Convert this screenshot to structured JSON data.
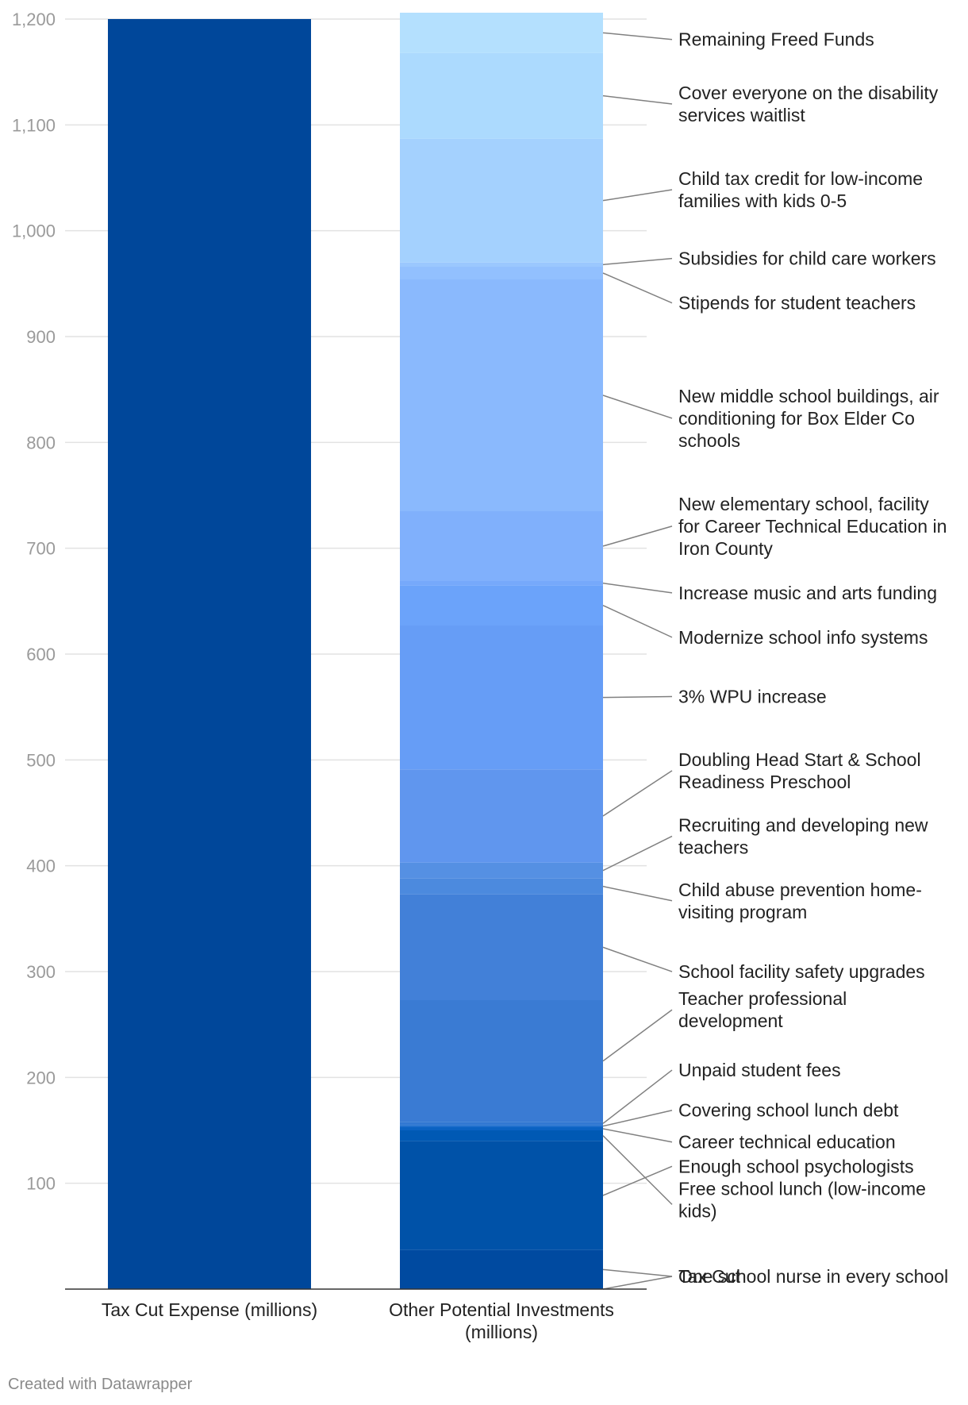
{
  "chart_data": {
    "type": "bar",
    "stacked": true,
    "yticks": [
      100,
      200,
      300,
      400,
      500,
      600,
      700,
      800,
      900,
      1000,
      1100,
      1200
    ],
    "ytick_labels": [
      "100",
      "200",
      "300",
      "400",
      "500",
      "600",
      "700",
      "800",
      "900",
      "1,000",
      "1,100",
      "1,200"
    ],
    "ylim": [
      0,
      1200
    ],
    "grid": true,
    "categories": [
      {
        "name": "Tax Cut Expense (millions)",
        "lines": [
          "Tax Cut Expense (millions)"
        ]
      },
      {
        "name": "Other Potential Investments (millions)",
        "lines": [
          "Other Potential Investments",
          "(millions)"
        ]
      }
    ],
    "tax_cut": {
      "value": 1200,
      "color": "#00479a"
    },
    "segments": [
      {
        "label": "Tax Cut",
        "lines": [
          "Tax Cut"
        ],
        "value": 0,
        "color": "#00479a",
        "label_y": 12
      },
      {
        "label": "One school nurse in every school",
        "lines": [
          "One school nurse in every school"
        ],
        "value": 37,
        "color": "#004aa0",
        "label_y": 12
      },
      {
        "label": "Free school lunch (low-income kids)",
        "lines": [
          "Enough school psychologists",
          "Free school lunch (low-income",
          "kids)"
        ],
        "value": 103,
        "color": "#0052a8",
        "label_y": 95
      },
      {
        "label": "Enough school psychologists",
        "lines": [],
        "value": 10,
        "color": "#0059b4",
        "label_y": 0
      },
      {
        "label": "Career technical education",
        "lines": [
          "Career technical education"
        ],
        "value": 3,
        "color": "#0a62c2",
        "label_y": 139
      },
      {
        "label": "Covering school lunch debt",
        "lines": [
          "Covering school lunch debt"
        ],
        "value": 2,
        "color": "#1f6fcd",
        "label_y": 169
      },
      {
        "label": "Unpaid student fees",
        "lines": [
          "Unpaid student fees"
        ],
        "value": 3,
        "color": "#3278d2",
        "label_y": 207
      },
      {
        "label": "Teacher professional development",
        "lines": [
          "Teacher professional",
          "development"
        ],
        "value": 115,
        "color": "#3a7bd3",
        "label_y": 264
      },
      {
        "label": "School facility safety upgrades",
        "lines": [
          "School facility safety upgrades"
        ],
        "value": 100,
        "color": "#4280d8",
        "label_y": 300
      },
      {
        "label": "Child abuse prevention home-visiting program",
        "lines": [
          "Child abuse prevention home-",
          "visiting program"
        ],
        "value": 15,
        "color": "#4c8ade",
        "label_y": 367
      },
      {
        "label": "Recruiting and developing new teachers",
        "lines": [
          "Recruiting and developing new",
          "teachers"
        ],
        "value": 15,
        "color": "#5590e3",
        "label_y": 428
      },
      {
        "label": "Doubling Head Start & School Readiness Preschool",
        "lines": [
          "Doubling Head Start & School",
          "Readiness Preschool"
        ],
        "value": 88,
        "color": "#6096ee",
        "label_y": 490
      },
      {
        "label": "3% WPU increase",
        "lines": [
          "3% WPU increase"
        ],
        "value": 136,
        "color": "#669df6",
        "label_y": 560
      },
      {
        "label": "Modernize school info systems",
        "lines": [
          "Modernize school info systems"
        ],
        "value": 38,
        "color": "#6ba3fa",
        "label_y": 616
      },
      {
        "label": "Increase music and arts funding",
        "lines": [
          "Increase music and arts funding"
        ],
        "value": 4,
        "color": "#76a9fb",
        "label_y": 658
      },
      {
        "label": "New elementary school, facility for Career Technical Education in Iron County",
        "lines": [
          "New elementary school, facility",
          "for Career Technical Education in",
          "Iron County"
        ],
        "value": 66,
        "color": "#80b0fc",
        "label_y": 721
      },
      {
        "label": "New middle school buildings, air conditioning for Box Elder Co schools",
        "lines": [
          "New middle school buildings, air",
          "conditioning for Box Elder Co",
          "schools"
        ],
        "value": 219,
        "color": "#8ab9fd",
        "label_y": 823
      },
      {
        "label": "Stipends for student teachers",
        "lines": [
          "Stipends for student teachers"
        ],
        "value": 12,
        "color": "#92c0fe",
        "label_y": 932
      },
      {
        "label": "Subsidies for child care workers",
        "lines": [
          "Subsidies for child care workers"
        ],
        "value": 4,
        "color": "#9bc8fe",
        "label_y": 974
      },
      {
        "label": "Child tax credit for low-income families with kids 0-5",
        "lines": [
          "Child tax credit for low-income",
          "families with kids 0-5"
        ],
        "value": 117,
        "color": "#a4d1fe",
        "label_y": 1039
      },
      {
        "label": "Cover everyone on the disability services waitlist",
        "lines": [
          "Cover everyone on the disability",
          "services waitlist"
        ],
        "value": 81,
        "color": "#acdafe",
        "label_y": 1120
      },
      {
        "label": "Remaining Freed Funds",
        "lines": [
          "Remaining Freed Funds"
        ],
        "value": 38,
        "color": "#b4e0fe",
        "label_y": 1181
      }
    ]
  },
  "footer": {
    "text": "Created with Datawrapper"
  }
}
